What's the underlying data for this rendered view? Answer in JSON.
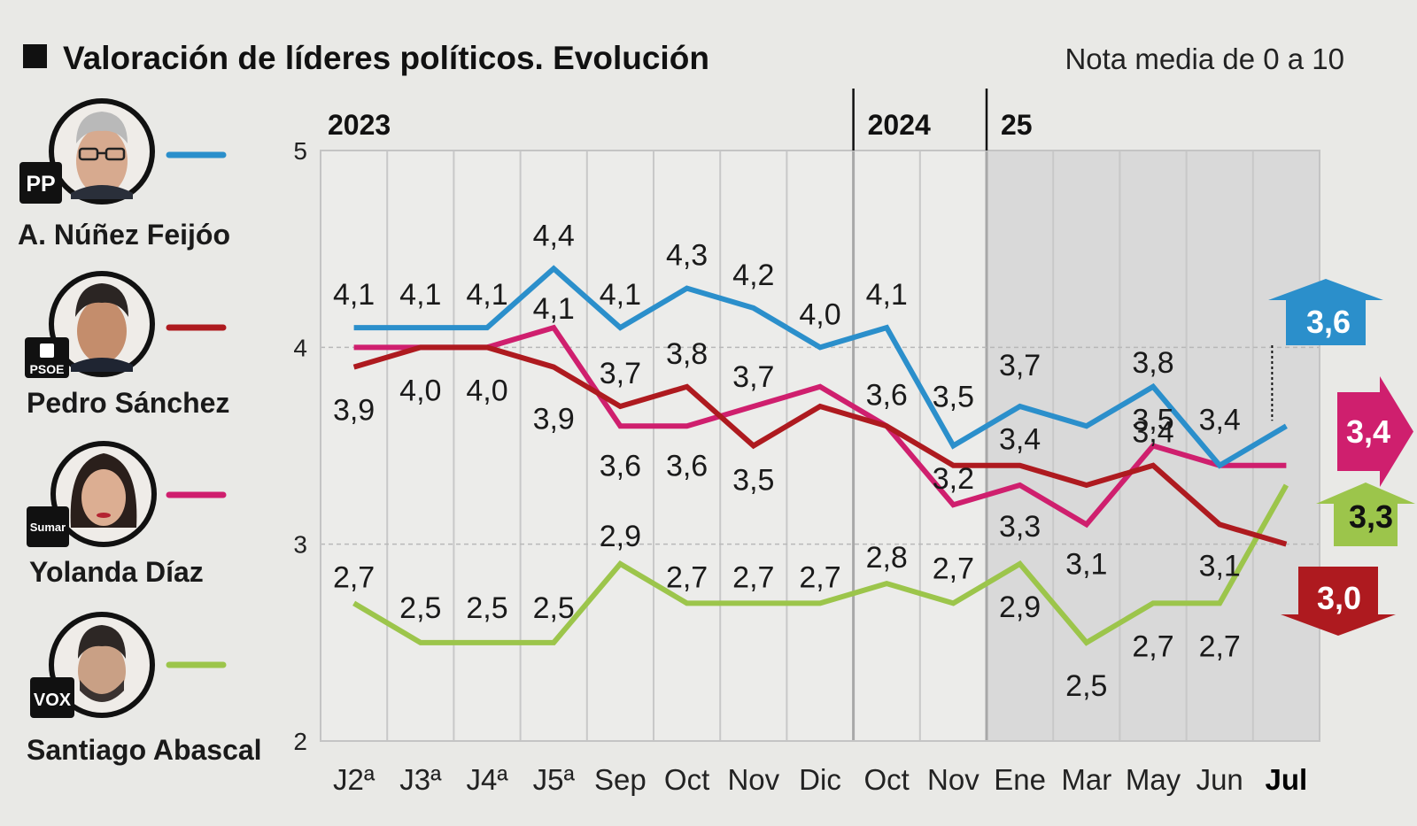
{
  "header": {
    "title": "Valoración de líderes políticos. Evolución",
    "subtitle": "Nota media de 0 a 10"
  },
  "leaders": [
    {
      "name": "A. Núñez Feijóo",
      "party": "PP",
      "color": "#2b8fcb"
    },
    {
      "name": "Pedro Sánchez",
      "party": "PSOE",
      "color": "#ae1a1f"
    },
    {
      "name": "Yolanda Díaz",
      "party": "Sumar",
      "color": "#cf1f6e"
    },
    {
      "name": "Santiago Abascal",
      "party": "VOX",
      "color": "#9cc54b"
    }
  ],
  "chart_data": {
    "type": "line",
    "title": "Valoración de líderes políticos. Evolución",
    "ylabel": "Nota media de 0 a 10",
    "ylim": [
      2,
      5
    ],
    "yticks": [
      "2",
      "3",
      "4",
      "5"
    ],
    "grid": true,
    "years": [
      {
        "label": "2023",
        "start_index": 0
      },
      {
        "label": "2024",
        "start_index": 8
      },
      {
        "label": "25",
        "start_index": 10
      }
    ],
    "shaded_from_index": 10,
    "categories": [
      "J2ª",
      "J3ª",
      "J4ª",
      "J5ª",
      "Sep",
      "Oct",
      "Nov",
      "Dic",
      "Oct",
      "Nov",
      "Ene",
      "Mar",
      "May",
      "Jun",
      "Jul"
    ],
    "series": [
      {
        "name": "A. Núñez Feijóo",
        "color": "#2b8fcb",
        "values": [
          4.1,
          4.1,
          4.1,
          4.4,
          4.1,
          4.3,
          4.2,
          4.0,
          4.1,
          3.5,
          3.7,
          3.6,
          3.8,
          3.4,
          3.6
        ],
        "labels": [
          "4,1",
          "4,1",
          "4,1",
          "4,4",
          "4,1",
          "4,3",
          "4,2",
          "4,0",
          "4,1",
          "3,5",
          "3,7",
          "",
          "3,8",
          "3,4",
          ""
        ],
        "final_label": "3,6",
        "final_marker": "arrow-up"
      },
      {
        "name": "Pedro Sánchez",
        "color": "#ae1a1f",
        "values": [
          3.9,
          4.0,
          4.0,
          3.9,
          3.7,
          3.8,
          3.5,
          3.7,
          3.6,
          3.4,
          3.4,
          3.3,
          3.4,
          3.1,
          3.0
        ],
        "labels": [
          "3,9",
          "4,0",
          "4,0",
          "3,9",
          "3,7",
          "3,8",
          "3,5",
          "",
          "3,6",
          "",
          "3,4",
          "",
          "3,4",
          "3,1",
          ""
        ],
        "final_label": "3,0",
        "final_marker": "arrow-down"
      },
      {
        "name": "Yolanda Díaz",
        "color": "#cf1f6e",
        "values": [
          4.0,
          4.0,
          4.0,
          4.1,
          3.6,
          3.6,
          3.7,
          3.8,
          3.6,
          3.2,
          3.3,
          3.1,
          3.5,
          3.4,
          3.4
        ],
        "labels": [
          "",
          "",
          "",
          "4,1",
          "3,6",
          "3,6",
          "3,7",
          "",
          "",
          "3,2",
          "3,3",
          "3,1",
          "3,5",
          "",
          ""
        ],
        "final_label": "3,4",
        "final_marker": "arrow-right"
      },
      {
        "name": "Santiago Abascal",
        "color": "#9cc54b",
        "values": [
          2.7,
          2.5,
          2.5,
          2.5,
          2.9,
          2.7,
          2.7,
          2.7,
          2.8,
          2.7,
          2.9,
          2.5,
          2.7,
          2.7,
          3.3
        ],
        "labels": [
          "2,7",
          "2,5",
          "2,5",
          "2,5",
          "2,9",
          "2,7",
          "2,7",
          "2,7",
          "2,8",
          "2,7",
          "2,9",
          "2,5",
          "2,7",
          "2,7",
          ""
        ],
        "final_label": "3,3",
        "final_marker": "arrow-up"
      }
    ]
  }
}
